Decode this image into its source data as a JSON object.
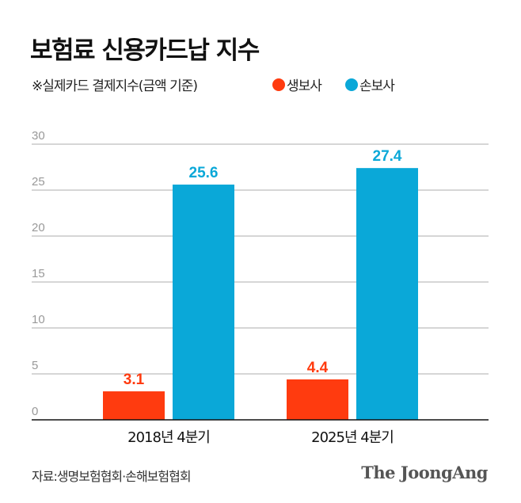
{
  "title": "보험료 신용카드납 지수",
  "note": "※실제카드 결제지수(금액 기준)",
  "source": "자료:생명보험협회·손해보험협회",
  "logo": "The JoongAng",
  "chart_data": {
    "type": "bar",
    "categories": [
      "2018년 4분기",
      "2025년 4분기"
    ],
    "series": [
      {
        "name": "생보사",
        "values": [
          3.1,
          4.4
        ],
        "color": "#ff3b0f"
      },
      {
        "name": "손보사",
        "values": [
          25.6,
          27.4
        ],
        "color": "#0aa8d8"
      }
    ],
    "ylim": [
      0,
      30
    ],
    "yticks": [
      "0",
      "5",
      "10",
      "15",
      "20",
      "25",
      "30"
    ],
    "grid": true,
    "legend": "top",
    "data_labels": true
  }
}
